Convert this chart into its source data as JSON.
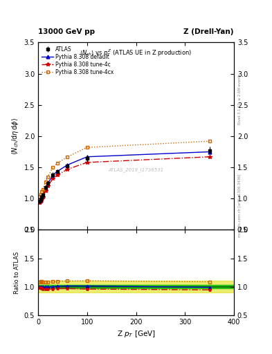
{
  "title_left": "13000 GeV pp",
  "title_right": "Z (Drell-Yan)",
  "main_title": "<N_{ch}> vs p_T^Z (ATLAS UE in Z production)",
  "xlabel": "Z p_{T} [GeV]",
  "ylabel_main": "<N_{ch}/dη dϕ>",
  "ylabel_ratio": "Ratio to ATLAS",
  "watermark": "ATLAS_2019_I1736531",
  "rivet_label": "Rivet 3.1.10, ≥ 2.6M events",
  "mcplots_label": "mcplots.cern.ch [arXiv:1306.3436]",
  "atlas_x": [
    2.5,
    5,
    7.5,
    10,
    15,
    20,
    30,
    40,
    60,
    100,
    350
  ],
  "atlas_y": [
    0.96,
    0.98,
    1.02,
    1.06,
    1.18,
    1.25,
    1.38,
    1.43,
    1.52,
    1.65,
    1.77
  ],
  "atlas_yerr": [
    0.03,
    0.03,
    0.03,
    0.03,
    0.03,
    0.04,
    0.04,
    0.04,
    0.05,
    0.05,
    0.06
  ],
  "pythia_default_x": [
    2.5,
    5,
    7.5,
    10,
    15,
    20,
    30,
    40,
    60,
    100,
    350
  ],
  "pythia_default_y": [
    0.95,
    0.97,
    1.01,
    1.05,
    1.17,
    1.24,
    1.38,
    1.44,
    1.54,
    1.67,
    1.75
  ],
  "pythia_4c_x": [
    2.5,
    5,
    7.5,
    10,
    15,
    20,
    30,
    40,
    60,
    100,
    350
  ],
  "pythia_4c_y": [
    0.94,
    0.96,
    0.99,
    1.02,
    1.13,
    1.2,
    1.32,
    1.38,
    1.47,
    1.58,
    1.67
  ],
  "pythia_4cx_x": [
    2.5,
    5,
    7.5,
    10,
    15,
    20,
    30,
    40,
    60,
    100,
    350
  ],
  "pythia_4cx_y": [
    1.04,
    1.07,
    1.11,
    1.15,
    1.27,
    1.35,
    1.5,
    1.57,
    1.67,
    1.82,
    1.92
  ],
  "ratio_default_y": [
    0.99,
    0.99,
    0.99,
    0.99,
    0.99,
    0.99,
    1.0,
    1.007,
    1.013,
    1.012,
    0.989
  ],
  "ratio_4c_y": [
    0.979,
    0.98,
    0.971,
    0.962,
    0.958,
    0.96,
    0.957,
    0.965,
    0.967,
    0.958,
    0.943
  ],
  "ratio_4cx_y": [
    1.083,
    1.092,
    1.088,
    1.085,
    1.076,
    1.08,
    1.087,
    1.098,
    1.099,
    1.103,
    1.085
  ],
  "color_atlas": "#000000",
  "color_default": "#0000cc",
  "color_4c": "#cc0000",
  "color_4cx": "#cc6600",
  "color_band_green": "#00bb00",
  "color_band_yellow": "#dddd00",
  "xlim": [
    0,
    400
  ],
  "ylim_main": [
    0.5,
    3.5
  ],
  "ylim_ratio": [
    0.5,
    2.0
  ],
  "yticks_main": [
    0.5,
    1.0,
    1.5,
    2.0,
    2.5,
    3.0,
    3.5
  ],
  "yticks_ratio": [
    0.5,
    1.0,
    1.5,
    2.0
  ],
  "xticks": [
    0,
    100,
    200,
    300,
    400
  ]
}
